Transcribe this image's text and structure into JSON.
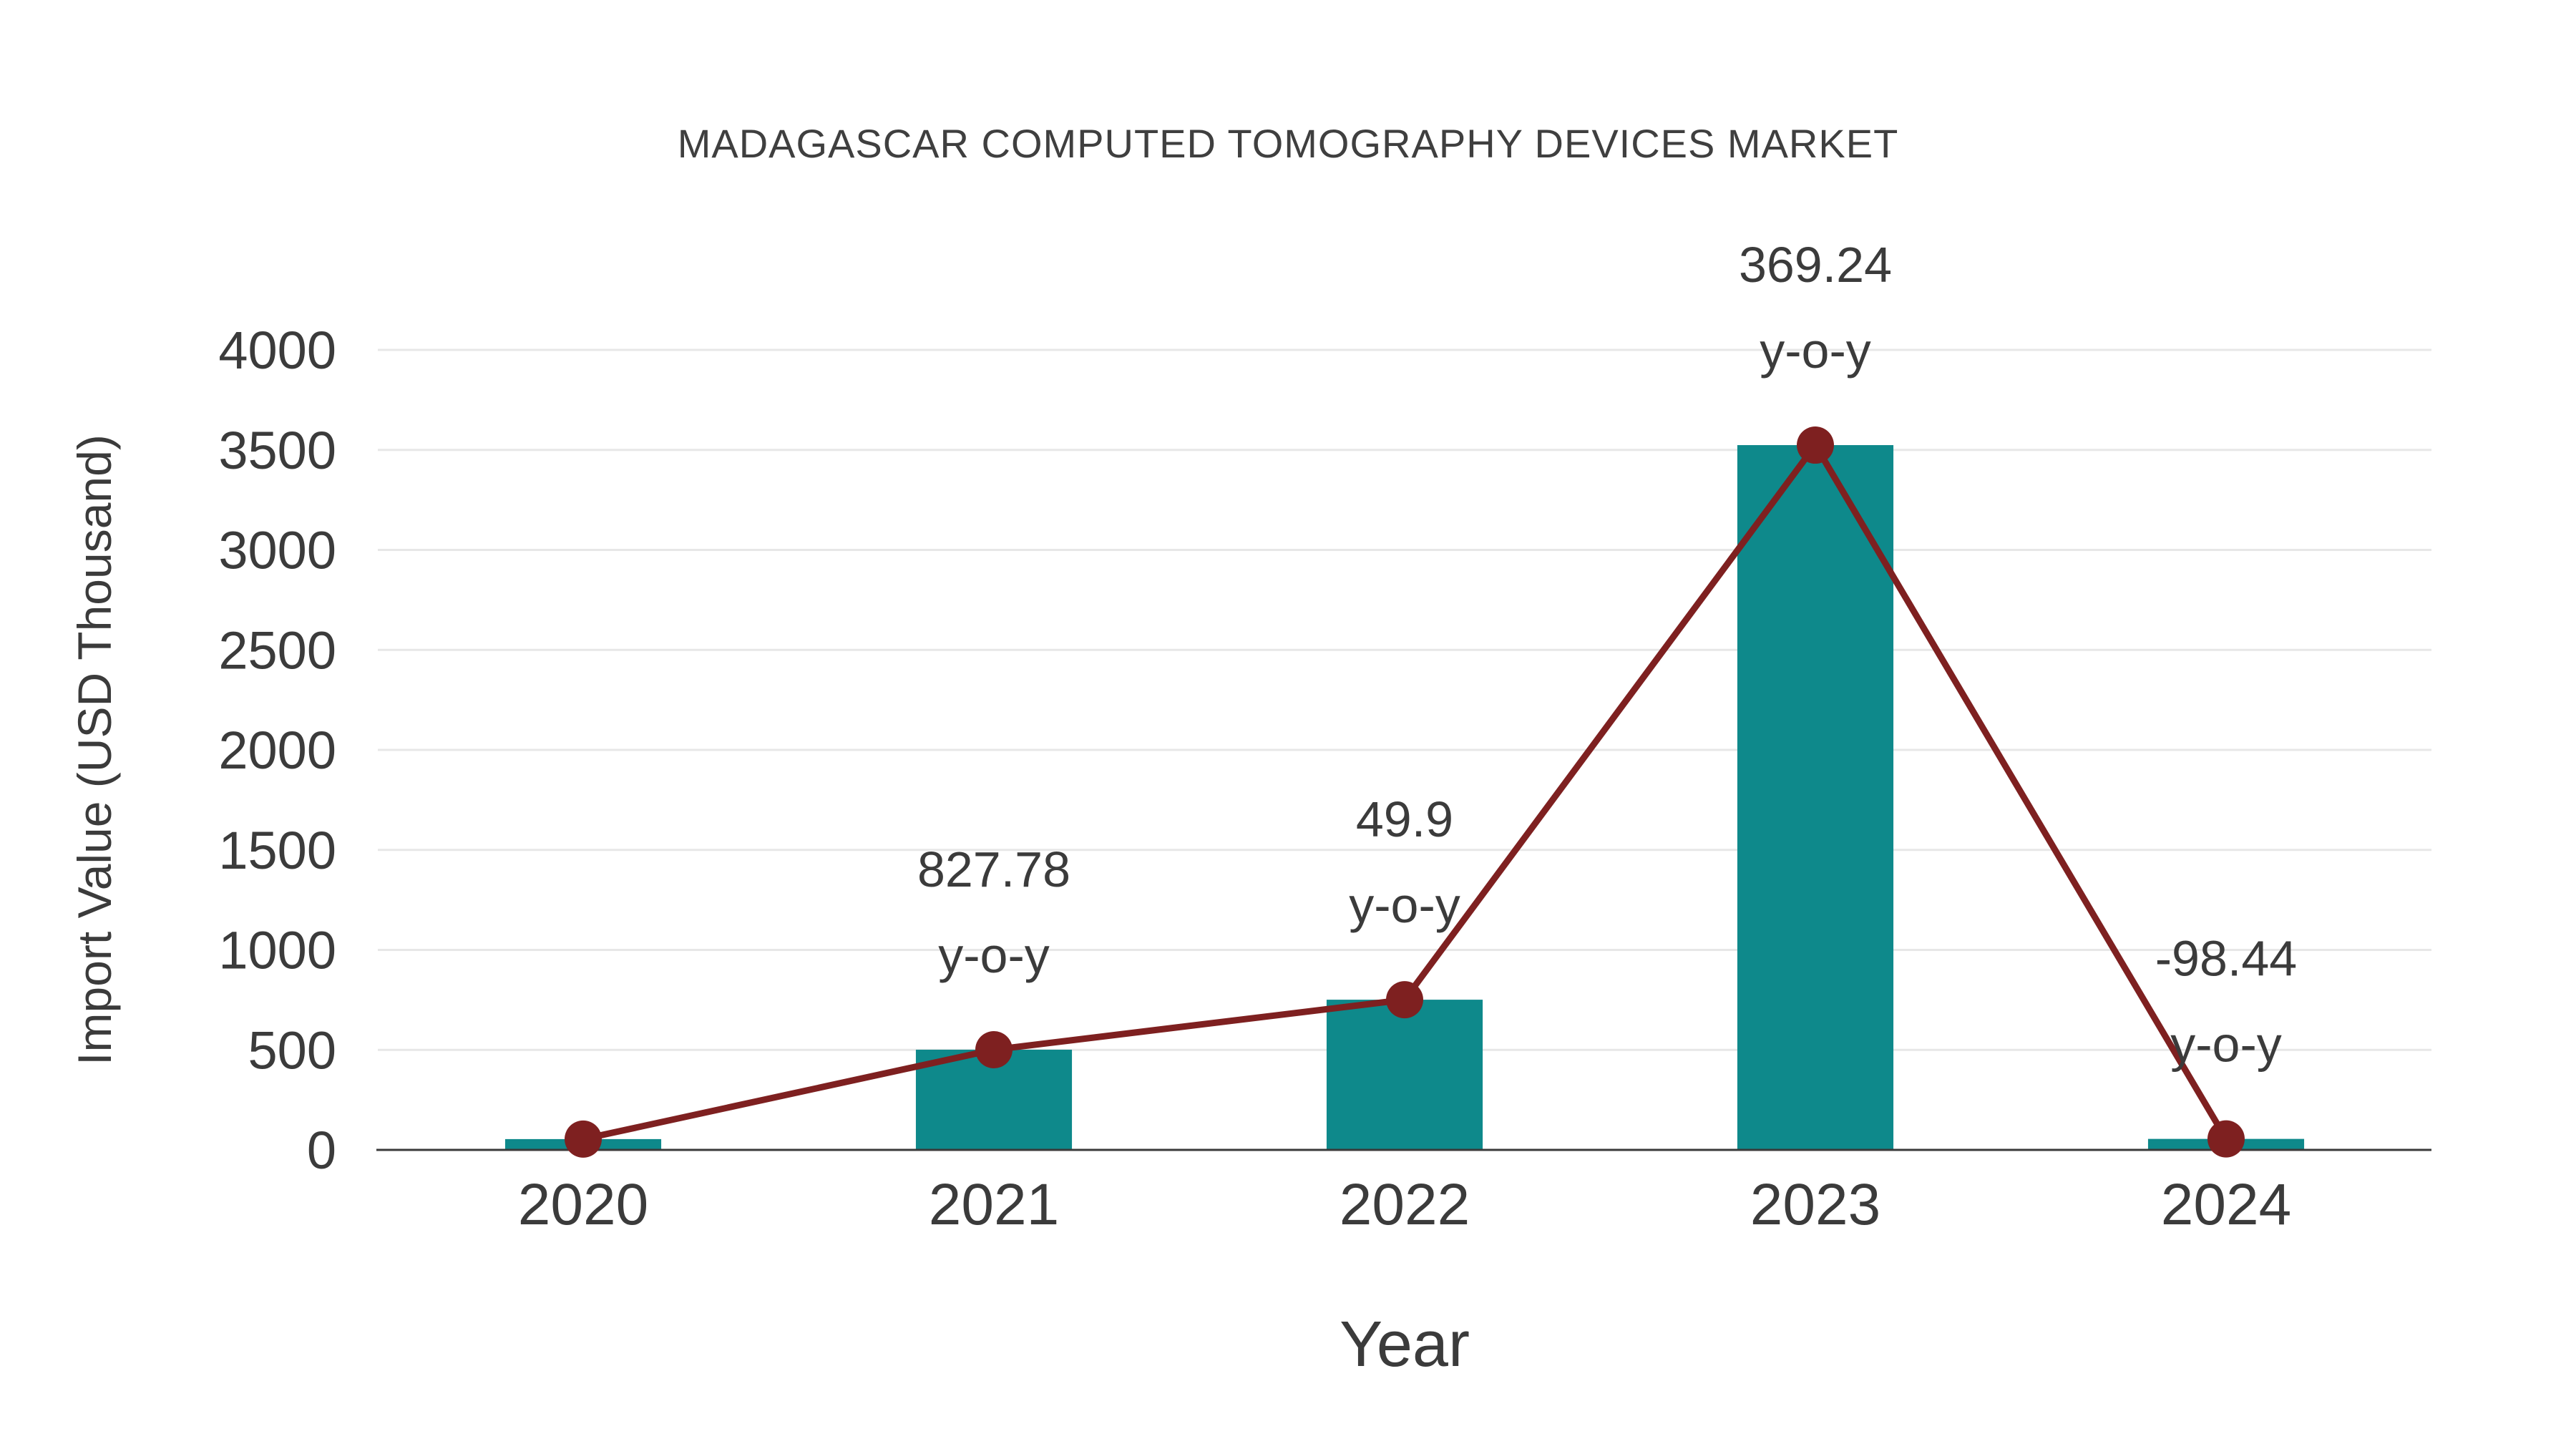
{
  "chart_data": {
    "type": "bar",
    "title": "MADAGASCAR COMPUTED TOMOGRAPHY DEVICES MARKET",
    "xlabel": "Year",
    "ylabel": "Import Value (USD Thousand)",
    "categories": [
      "2020",
      "2021",
      "2022",
      "2023",
      "2024"
    ],
    "series": [
      {
        "name": "Import Value",
        "type": "bar",
        "values": [
          54,
          501,
          751,
          3524,
          55
        ]
      },
      {
        "name": "Import Value trend",
        "type": "line",
        "values": [
          54,
          501,
          751,
          3524,
          55
        ]
      }
    ],
    "annotations": [
      {
        "category": "2021",
        "value_label": "827.78",
        "suffix": "y-o-y"
      },
      {
        "category": "2022",
        "value_label": "49.9",
        "suffix": "y-o-y"
      },
      {
        "category": "2023",
        "value_label": "369.24",
        "suffix": "y-o-y"
      },
      {
        "category": "2024",
        "value_label": "-98.44",
        "suffix": "y-o-y"
      }
    ],
    "ylim": [
      0,
      4000
    ],
    "yticks": [
      0,
      500,
      1000,
      1500,
      2000,
      2500,
      3000,
      3500,
      4000
    ],
    "grid": true,
    "legend_position": "none"
  },
  "colors": {
    "bar": "#0e898b",
    "line": "#7e2020",
    "marker": "#7e2020",
    "grid": "#e7e7e7",
    "axis": "#3a3a3a",
    "tick_text": "#3b3b3b",
    "title_text": "#3f3f3f",
    "annotation_text": "#3b3b3b"
  }
}
